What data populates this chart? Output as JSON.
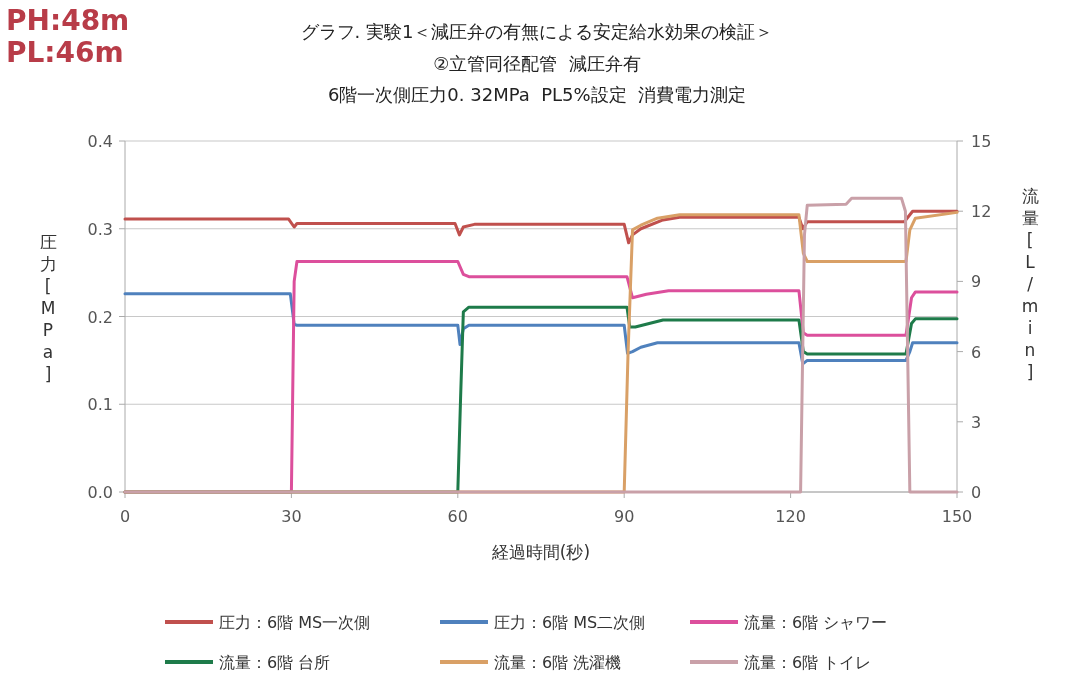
{
  "chart_data": {
    "type": "line",
    "title": "グラフ. 実験1＜減圧弁の有無による安定給水効果の検証＞",
    "subtitle": "②立管同径配管  減圧弁有\n6階一次側圧力0. 32MPa  PL5%設定  消費電力測定",
    "annotations": [
      "PH:48m",
      "PL:46m"
    ],
    "xlabel": "経過時間(秒)",
    "ylabel": "圧力[MPa]",
    "y2label": "流量[L/min]",
    "xlim": [
      0,
      150
    ],
    "xticks": [
      0,
      30,
      60,
      90,
      120,
      150
    ],
    "ylim": [
      0,
      0.4
    ],
    "yticks": [
      {
        "value": 0,
        "label": "0.0"
      },
      0.1,
      0.2,
      0.3,
      0.4
    ],
    "y2lim": [
      0,
      15
    ],
    "y2ticks": [
      0,
      3,
      6,
      9,
      12,
      15
    ],
    "grid": "y",
    "legend": "bottom",
    "marker": "none",
    "line_style": "solid",
    "series": [
      {
        "name": "圧力：6階 MS一次側",
        "color": "#c0504d",
        "x": [
          0,
          29.5,
          30.5,
          31,
          59.5,
          60.3,
          61,
          63,
          90,
          90.8,
          91.5,
          93,
          97,
          100,
          121.5,
          122.2,
          123,
          140.5,
          141.5,
          142,
          150
        ],
        "values": [
          0.311,
          0.311,
          0.302,
          0.306,
          0.306,
          0.293,
          0.302,
          0.305,
          0.305,
          0.284,
          0.293,
          0.3,
          0.31,
          0.313,
          0.313,
          0.3,
          0.308,
          0.308,
          0.316,
          0.32,
          0.32
        ]
      },
      {
        "name": "圧力：6階 MS二次側",
        "color": "#4f81bd",
        "x": [
          0,
          29.8,
          30.5,
          31,
          60,
          60.4,
          61,
          62,
          90,
          90.6,
          91.5,
          93,
          96,
          121.5,
          122.2,
          123,
          140.8,
          141.5,
          142,
          150
        ],
        "values": [
          0.226,
          0.226,
          0.191,
          0.19,
          0.19,
          0.168,
          0.186,
          0.19,
          0.19,
          0.158,
          0.16,
          0.165,
          0.17,
          0.17,
          0.146,
          0.15,
          0.15,
          0.16,
          0.17,
          0.17
        ]
      },
      {
        "name": "流量：6階 シャワー",
        "color": "#dc4f9c",
        "axis": "y2",
        "x": [
          0,
          30,
          30.5,
          31,
          60,
          61,
          62,
          90.5,
          91.5,
          94,
          98,
          121.5,
          122.3,
          123,
          140.8,
          141.8,
          142.5,
          150
        ],
        "values": [
          0,
          0,
          9.0,
          9.85,
          9.85,
          9.3,
          9.2,
          9.2,
          8.3,
          8.45,
          8.6,
          8.6,
          6.8,
          6.7,
          6.7,
          8.3,
          8.55,
          8.55
        ]
      },
      {
        "name": "流量：6階 台所",
        "color": "#1e7b4a",
        "axis": "y2",
        "x": [
          0,
          60,
          60.5,
          61,
          62,
          90.5,
          91,
          92,
          97,
          121.5,
          122.3,
          123,
          140.8,
          141.8,
          142.5,
          150
        ],
        "values": [
          0,
          0,
          4,
          7.7,
          7.9,
          7.9,
          7.05,
          7.05,
          7.35,
          7.35,
          6.0,
          5.9,
          5.9,
          7.2,
          7.4,
          7.4
        ]
      },
      {
        "name": "流量：6階 洗濯機",
        "color": "#d9a066",
        "axis": "y2",
        "x": [
          0,
          90,
          90.7,
          91.5,
          93,
          96,
          100,
          121.5,
          122.3,
          123,
          140.8,
          141.5,
          142.5,
          150
        ],
        "values": [
          0,
          0,
          6,
          11.2,
          11.4,
          11.7,
          11.85,
          11.85,
          10.2,
          9.85,
          9.85,
          11.2,
          11.7,
          11.95
        ]
      },
      {
        "name": "流量：6階 トイレ",
        "color": "#c9a0a8",
        "axis": "y2",
        "x": [
          0,
          121.8,
          122.5,
          123,
          130,
          131,
          140,
          140.7,
          141.5,
          150
        ],
        "values": [
          0,
          0,
          11,
          12.25,
          12.3,
          12.55,
          12.55,
          12.0,
          0,
          0
        ]
      }
    ]
  }
}
